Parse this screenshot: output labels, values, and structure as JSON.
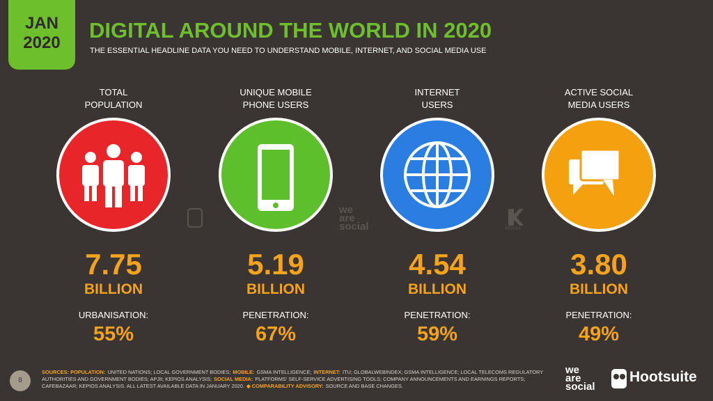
{
  "badge": {
    "month": "JAN",
    "year": "2020"
  },
  "header": {
    "title": "DIGITAL AROUND THE WORLD IN 2020",
    "subtitle": "THE ESSENTIAL HEADLINE DATA YOU NEED TO UNDERSTAND MOBILE, INTERNET, AND SOCIAL MEDIA USE"
  },
  "columns": [
    {
      "label": [
        "TOTAL",
        "POPULATION"
      ],
      "value": "7.75",
      "unit": "BILLION",
      "sub_label": "URBANISATION:",
      "sub_value": "55%"
    },
    {
      "label": [
        "UNIQUE MOBILE",
        "PHONE USERS"
      ],
      "value": "5.19",
      "unit": "BILLION",
      "sub_label": "PENETRATION:",
      "sub_value": "67%"
    },
    {
      "label": [
        "INTERNET",
        "USERS"
      ],
      "value": "4.54",
      "unit": "BILLION",
      "sub_label": "PENETRATION:",
      "sub_value": "59%"
    },
    {
      "label": [
        "ACTIVE SOCIAL",
        "MEDIA USERS"
      ],
      "value": "3.80",
      "unit": "BILLION",
      "sub_label": "PENETRATION:",
      "sub_value": "49%"
    }
  ],
  "watermarks": {
    "we_are_social": [
      "we",
      "are",
      "social"
    ],
    "kepios": "KEPIOS"
  },
  "footer": {
    "page": "8",
    "sources": [
      {
        "label": "SOURCES: POPULATION:",
        "text": "UNITED NATIONS; LOCAL GOVERNMENT BODIES;"
      },
      {
        "label": "MOBILE:",
        "text": "GSMA INTELLIGENCE;"
      },
      {
        "label": "INTERNET:",
        "text": "ITU; GLOBALWEBINDEX; GSMA INTELLIGENCE; LOCAL TELECOMS REGULATORY AUTHORITIES AND GOVERNMENT BODIES; APJII; KEPIOS ANALYSIS;"
      },
      {
        "label": "SOCIAL MEDIA:",
        "text": "PLATFORMS' SELF-SERVICE ADVERTISING TOOLS; COMPANY ANNOUNCEMENTS AND EARNINGS REPORTS; CAFEBAZAAR; KEPIOS ANALYSIS. ALL LATEST AVAILABLE DATA IN JANUARY 2020."
      },
      {
        "label": "◆ COMPARABILITY ADVISORY:",
        "text": "SOURCE AND BASE CHANGES."
      }
    ],
    "logo_wearesocial": [
      "we",
      "are",
      "social"
    ],
    "logo_hootsuite": "Hootsuite"
  }
}
